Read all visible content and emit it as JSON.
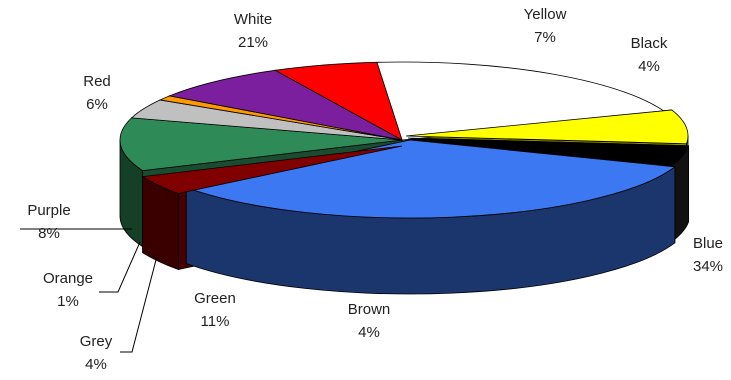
{
  "chart_data": {
    "type": "pie",
    "style": "3d-exploded",
    "categories": [
      "White",
      "Yellow",
      "Black",
      "Blue",
      "Brown",
      "Green",
      "Grey",
      "Orange",
      "Purple",
      "Red"
    ],
    "values": [
      21,
      7,
      4,
      34,
      4,
      11,
      4,
      1,
      8,
      6
    ],
    "value_labels": [
      "21%",
      "7%",
      "4%",
      "34%",
      "4%",
      "11%",
      "4%",
      "1%",
      "8%",
      "6%"
    ],
    "colors": [
      "#ffffff",
      "#ffff00",
      "#000000",
      "#3b78f2",
      "#800000",
      "#2e8b57",
      "#c0c0c0",
      "#ff9900",
      "#7b1f9e",
      "#ff0000"
    ]
  }
}
